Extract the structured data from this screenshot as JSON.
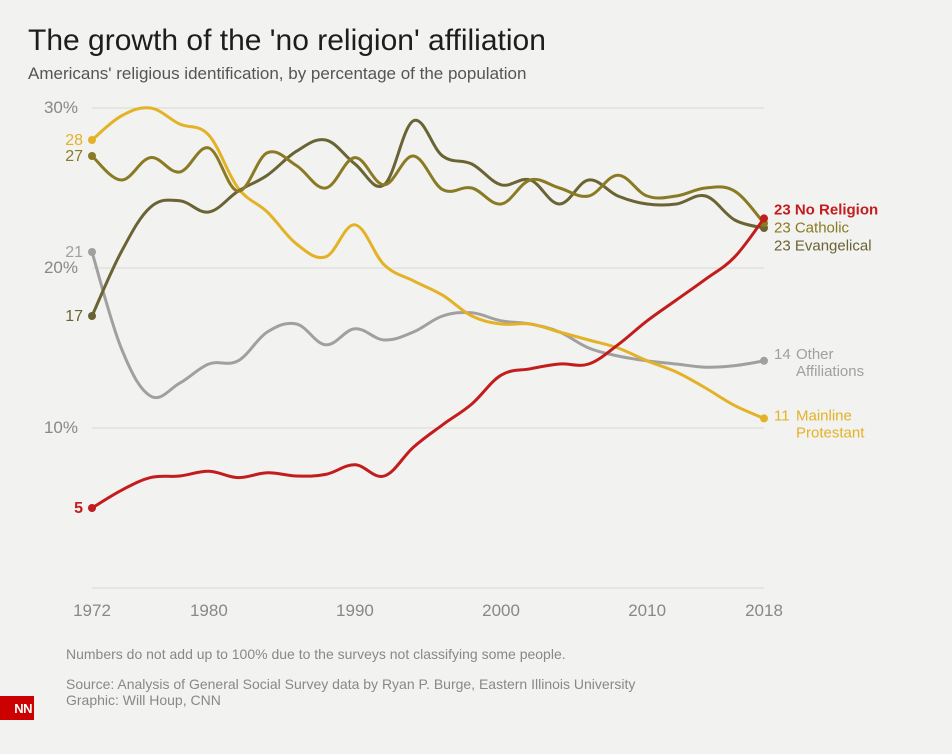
{
  "title": "The growth of the 'no religion' affiliation",
  "subtitle": "Americans' religious identification, by percentage of the population",
  "footnote": "Numbers do not add up to 100% due to the surveys not classifying some people.",
  "source_line": "Source: Analysis of General Social Survey data by Ryan P. Burge, Eastern Illinois University",
  "graphic_line": "Graphic: Will Houp, CNN",
  "logo_text": "NN",
  "chart": {
    "type": "line",
    "background_color": "#f2f2f0",
    "grid_color": "#d8d8d4",
    "axis_text_color": "#888888",
    "axis_fontsize": 17,
    "title_fontsize": 30,
    "subtitle_fontsize": 17,
    "xlim": [
      1972,
      2018
    ],
    "ylim": [
      0,
      30
    ],
    "yticks": [
      10,
      20,
      30
    ],
    "ytick_labels": [
      "10%",
      "20%",
      "30%"
    ],
    "xticks": [
      1972,
      1980,
      1990,
      2000,
      2010,
      2018
    ],
    "xtick_labels": [
      "1972",
      "1980",
      "1990",
      "2000",
      "2010",
      "2018"
    ],
    "line_width": 3,
    "start_dot_radius": 4,
    "end_dot_radius": 4,
    "end_label_fontsize": 15,
    "series": [
      {
        "key": "no_religion",
        "start_label": "5",
        "end_value": "23",
        "end_name": "No Religion",
        "color": "#c31c1c",
        "bold_end": true,
        "x": [
          1972,
          1974,
          1976,
          1978,
          1980,
          1982,
          1984,
          1986,
          1988,
          1990,
          1992,
          1994,
          1996,
          1998,
          2000,
          2002,
          2004,
          2006,
          2008,
          2010,
          2012,
          2014,
          2016,
          2018
        ],
        "y": [
          5.0,
          6.1,
          6.9,
          7.0,
          7.3,
          6.9,
          7.2,
          7.0,
          7.1,
          7.7,
          7.0,
          8.8,
          10.2,
          11.5,
          13.3,
          13.7,
          14.0,
          14.0,
          15.2,
          16.7,
          18.0,
          19.3,
          20.7,
          23.1
        ]
      },
      {
        "key": "catholic",
        "start_label": "27",
        "end_value": "23",
        "end_name": "Catholic",
        "color": "#8a7a24",
        "bold_end": false,
        "x": [
          1972,
          1974,
          1976,
          1978,
          1980,
          1982,
          1984,
          1986,
          1988,
          1990,
          1992,
          1994,
          1996,
          1998,
          2000,
          2002,
          2004,
          2006,
          2008,
          2010,
          2012,
          2014,
          2016,
          2018
        ],
        "y": [
          27.0,
          25.5,
          26.9,
          26.0,
          27.5,
          24.8,
          27.2,
          26.4,
          25.0,
          26.9,
          25.2,
          27.0,
          24.9,
          25.0,
          24.0,
          25.5,
          25.0,
          24.5,
          25.8,
          24.5,
          24.5,
          25.0,
          24.8,
          22.8
        ]
      },
      {
        "key": "evangelical",
        "start_label": "17",
        "end_value": "23",
        "end_name": "Evangelical",
        "color": "#6a6334",
        "bold_end": false,
        "x": [
          1972,
          1974,
          1976,
          1978,
          1980,
          1982,
          1984,
          1986,
          1988,
          1990,
          1992,
          1994,
          1996,
          1998,
          2000,
          2002,
          2004,
          2006,
          2008,
          2010,
          2012,
          2014,
          2016,
          2018
        ],
        "y": [
          17.0,
          21.0,
          23.8,
          24.2,
          23.5,
          24.8,
          25.8,
          27.3,
          28.0,
          26.5,
          25.2,
          29.2,
          27.0,
          26.5,
          25.2,
          25.5,
          24.0,
          25.5,
          24.5,
          24.0,
          24.0,
          24.5,
          23.0,
          22.5
        ]
      },
      {
        "key": "mainline_protestant",
        "start_label": "28",
        "end_value": "11",
        "end_name": "Mainline Protestant",
        "color": "#e3b227",
        "bold_end": false,
        "x": [
          1972,
          1974,
          1976,
          1978,
          1980,
          1982,
          1984,
          1986,
          1988,
          1990,
          1992,
          1994,
          1996,
          1998,
          2000,
          2002,
          2004,
          2006,
          2008,
          2010,
          2012,
          2014,
          2016,
          2018
        ],
        "y": [
          28.0,
          29.5,
          30.0,
          29.0,
          28.3,
          25.0,
          23.5,
          21.5,
          20.7,
          22.7,
          20.2,
          19.2,
          18.3,
          17.0,
          16.5,
          16.5,
          16.0,
          15.5,
          15.0,
          14.2,
          13.5,
          12.5,
          11.4,
          10.6
        ]
      },
      {
        "key": "other_affiliations",
        "start_label": "21",
        "end_value": "14",
        "end_name": "Other Affiliations",
        "color": "#a0a0a0",
        "bold_end": false,
        "x": [
          1972,
          1974,
          1976,
          1978,
          1980,
          1982,
          1984,
          1986,
          1988,
          1990,
          1992,
          1994,
          1996,
          1998,
          2000,
          2002,
          2004,
          2006,
          2008,
          2010,
          2012,
          2014,
          2016,
          2018
        ],
        "y": [
          21.0,
          15.0,
          12.0,
          12.8,
          14.0,
          14.2,
          16.0,
          16.5,
          15.2,
          16.2,
          15.5,
          16.0,
          17.0,
          17.2,
          16.7,
          16.5,
          16.0,
          15.0,
          14.5,
          14.2,
          14.0,
          13.8,
          13.9,
          14.2
        ]
      }
    ]
  }
}
